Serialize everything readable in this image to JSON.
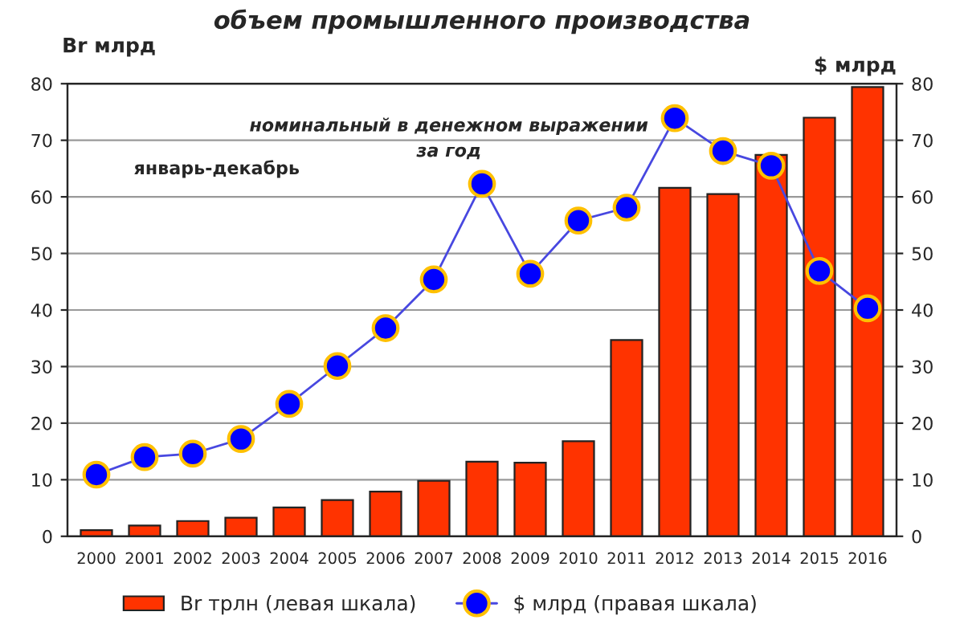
{
  "chart_data": {
    "type": "bar",
    "title": "объем промышленного производства",
    "subtitle": "номинальный в денежном выражении\nза год",
    "ylabel": "Br млрд",
    "y2label": "$ млрд",
    "annotations": [
      "январь-декабрь"
    ],
    "categories": [
      "2000",
      "2001",
      "2002",
      "2003",
      "2004",
      "2005",
      "2006",
      "2007",
      "2008",
      "2009",
      "2010",
      "2011",
      "2012",
      "2013",
      "2014",
      "2015",
      "2016"
    ],
    "series": [
      {
        "name": "Br трлн (левая шкала)",
        "color": "#ff3300",
        "values": [
          1.1,
          1.9,
          2.7,
          3.3,
          5.1,
          6.4,
          7.9,
          9.8,
          13.2,
          13.0,
          16.8,
          34.7,
          61.6,
          60.5,
          67.4,
          74.0,
          79.4
        ]
      },
      {
        "name": "$ млрд (правая шкала)",
        "type": "line",
        "axis": "y2",
        "color": "#4848e0",
        "marker": "circle",
        "values": [
          10.9,
          14.0,
          14.6,
          17.2,
          23.4,
          30.1,
          36.8,
          45.4,
          62.3,
          46.4,
          55.8,
          58.1,
          73.9,
          68.1,
          65.5,
          46.9,
          40.3
        ]
      }
    ],
    "ylim": [
      0,
      80
    ],
    "yticks": [
      0,
      10,
      20,
      30,
      40,
      50,
      60,
      70,
      80
    ],
    "y2lim": [
      0,
      80
    ],
    "y2ticks": [
      0,
      10,
      20,
      30,
      40,
      50,
      60,
      70,
      80
    ],
    "grid": "y",
    "legend": "bottom"
  }
}
